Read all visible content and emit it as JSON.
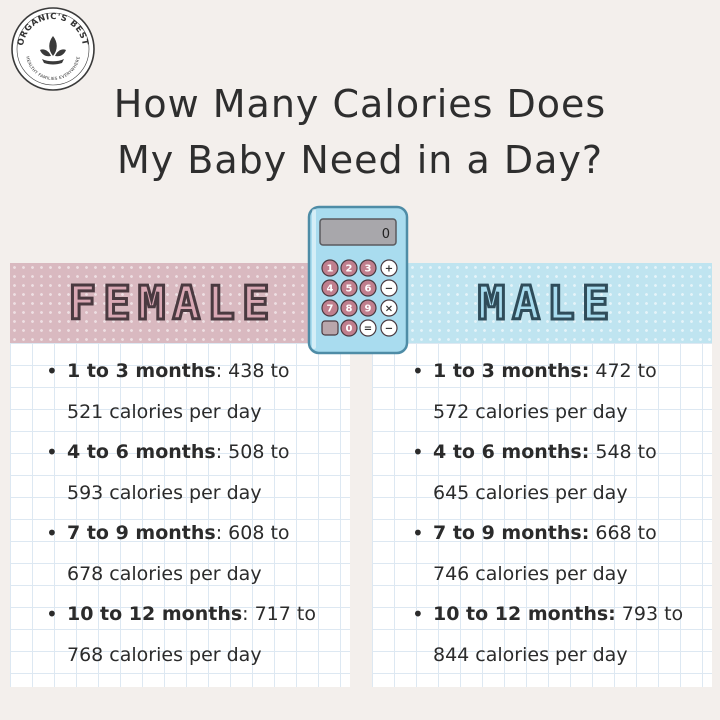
{
  "logo": {
    "top_text": "ORGANIC'S BEST",
    "bottom_text": "HEALTHY FAMILIES EVERYWHERE",
    "icon": "leaf-hand-icon"
  },
  "title": {
    "line1": "How Many Calories Does",
    "line2": "My Baby Need in a Day?"
  },
  "calculator": {
    "display": "0",
    "keys": [
      "1",
      "2",
      "3",
      "+",
      "4",
      "5",
      "6",
      "−",
      "7",
      "8",
      "9",
      "×",
      "",
      "0",
      "=",
      "−"
    ],
    "icon": "calculator-icon"
  },
  "female": {
    "heading": "FEMALE",
    "color": "#d9b9c0",
    "items": [
      {
        "label": "1 to 3 months",
        "text_a": ": 438 to",
        "text_b": "521 calories per day"
      },
      {
        "label": "4 to 6 months",
        "text_a": ": 508 to",
        "text_b": "593 calories per day"
      },
      {
        "label": "7 to 9 months",
        "text_a": ": 608 to",
        "text_b": "678 calories per day"
      },
      {
        "label": "10 to 12 months",
        "text_a": ": 717 to",
        "text_b": "768 calories per day"
      }
    ]
  },
  "male": {
    "heading": "MALE",
    "color": "#bfe4f0",
    "items": [
      {
        "label": "1 to 3 months:",
        "text_a": " 472 to",
        "text_b": "572 calories per day"
      },
      {
        "label": "4 to 6 months:",
        "text_a": " 548 to",
        "text_b": "645 calories per day"
      },
      {
        "label": "7 to 9 months:",
        "text_a": " 668 to",
        "text_b": "746 calories per day"
      },
      {
        "label": "10 to 12 months:",
        "text_a": " 793 to",
        "text_b": "844 calories per day"
      }
    ]
  }
}
